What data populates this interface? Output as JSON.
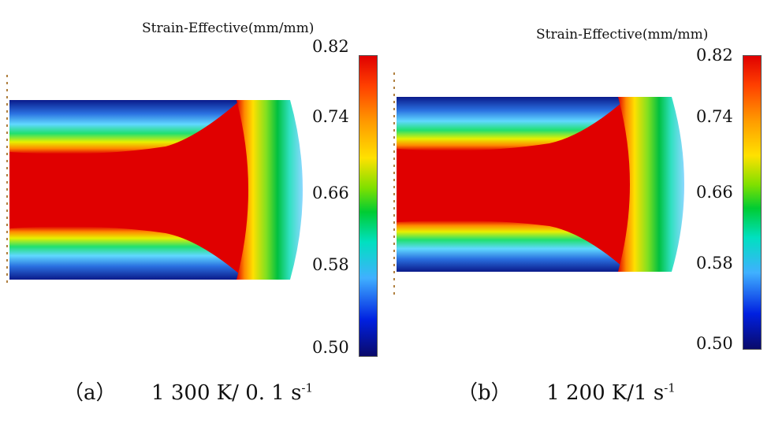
{
  "panels": [
    {
      "legend_title": "Strain-Effective(mm/mm)",
      "ticks": [
        "0.82",
        "0.74",
        "0.66",
        "0.58",
        "0.50"
      ],
      "caption_label": "（a）",
      "caption_value": "1 300 K/ 0. 1 s",
      "caption_exp": "-1"
    },
    {
      "legend_title": "Strain-Effective(mm/mm)",
      "ticks": [
        "0.82",
        "0.74",
        "0.66",
        "0.58",
        "0.50"
      ],
      "caption_label": "（b）",
      "caption_value": "1 200 K/1 s",
      "caption_exp": "-1"
    }
  ],
  "colors": {
    "max": "#e00000",
    "high": "#ffe100",
    "mid": "#00cc33",
    "low_mid": "#40b0ff",
    "min": "#0a0a6a"
  }
}
